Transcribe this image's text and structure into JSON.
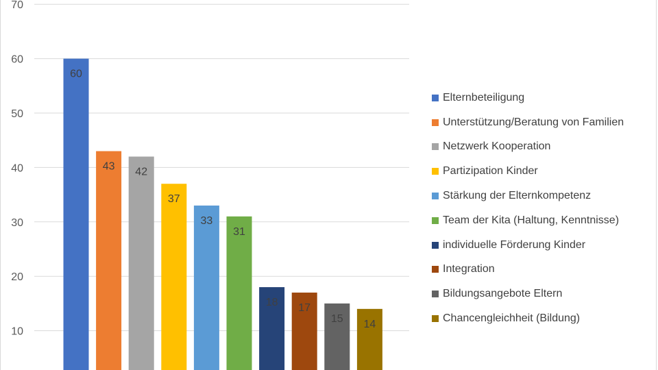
{
  "chart_data": {
    "type": "bar",
    "title": "",
    "xlabel": "",
    "ylabel": "",
    "ylim": [
      0,
      70
    ],
    "yticks": [
      10,
      20,
      30,
      40,
      50,
      60,
      70
    ],
    "grid": true,
    "legend_position": "right",
    "categories": [
      "Elternbeteiligung",
      "Unterstützung/Beratung von Familien",
      "Netzwerk Kooperation",
      "Partizipation Kinder",
      "Stärkung der Elternkompetenz",
      "Team der Kita (Haltung, Kenntnisse)",
      "individuelle Förderung Kinder",
      "Integration",
      "Bildungsangebote Eltern",
      "Chancengleichheit (Bildung)"
    ],
    "values": [
      60,
      43,
      42,
      37,
      33,
      31,
      18,
      17,
      15,
      14
    ],
    "colors": [
      "#4472C4",
      "#ED7D31",
      "#A5A5A5",
      "#FFC000",
      "#5B9BD5",
      "#70AD47",
      "#264478",
      "#9E480E",
      "#636363",
      "#997300"
    ]
  }
}
